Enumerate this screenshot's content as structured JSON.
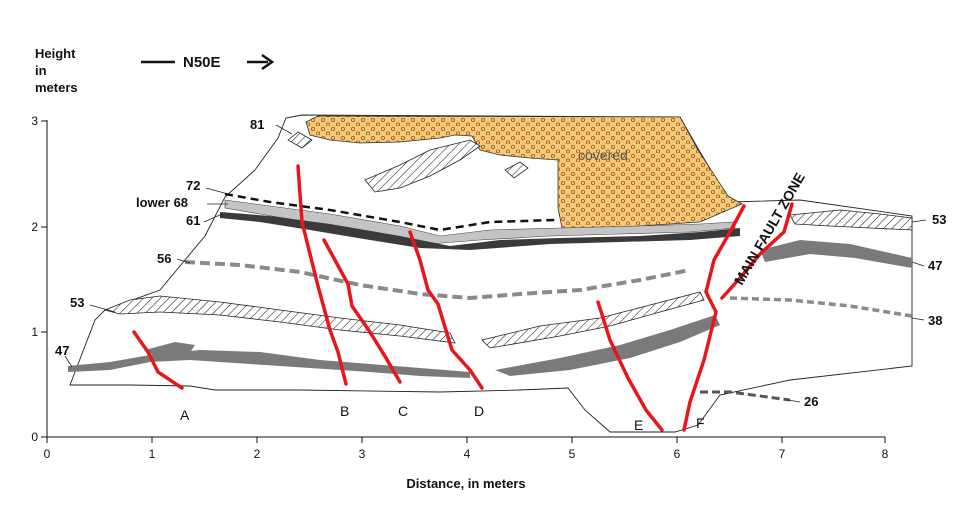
{
  "header": {
    "yaxis_title": [
      "Height",
      "in",
      "meters"
    ],
    "orientation": "N50E",
    "xaxis_title": "Distance, in meters"
  },
  "axes": {
    "x_ticks": [
      "0",
      "1",
      "2",
      "3",
      "4",
      "5",
      "6",
      "7",
      "8"
    ],
    "y_ticks": [
      "0",
      "1",
      "2",
      "3"
    ]
  },
  "unit_labels": {
    "u81": "81",
    "u72": "72",
    "lower68": "lower 68",
    "u61": "61",
    "u56": "56",
    "u53_left": "53",
    "u47_left": "47",
    "u53_right": "53",
    "u47_right": "47",
    "u38": "38",
    "u26": "26"
  },
  "annotations": {
    "covered": "covered",
    "main_fault_zone": "MAIN FAULT ZONE"
  },
  "faults": [
    "A",
    "B",
    "C",
    "D",
    "E",
    "F"
  ],
  "colors": {
    "fault": "#e8161b",
    "covered_fill": "#f6c87a",
    "covered_dots": "#9a5a14",
    "unit_gray": "#7a7a7a"
  }
}
